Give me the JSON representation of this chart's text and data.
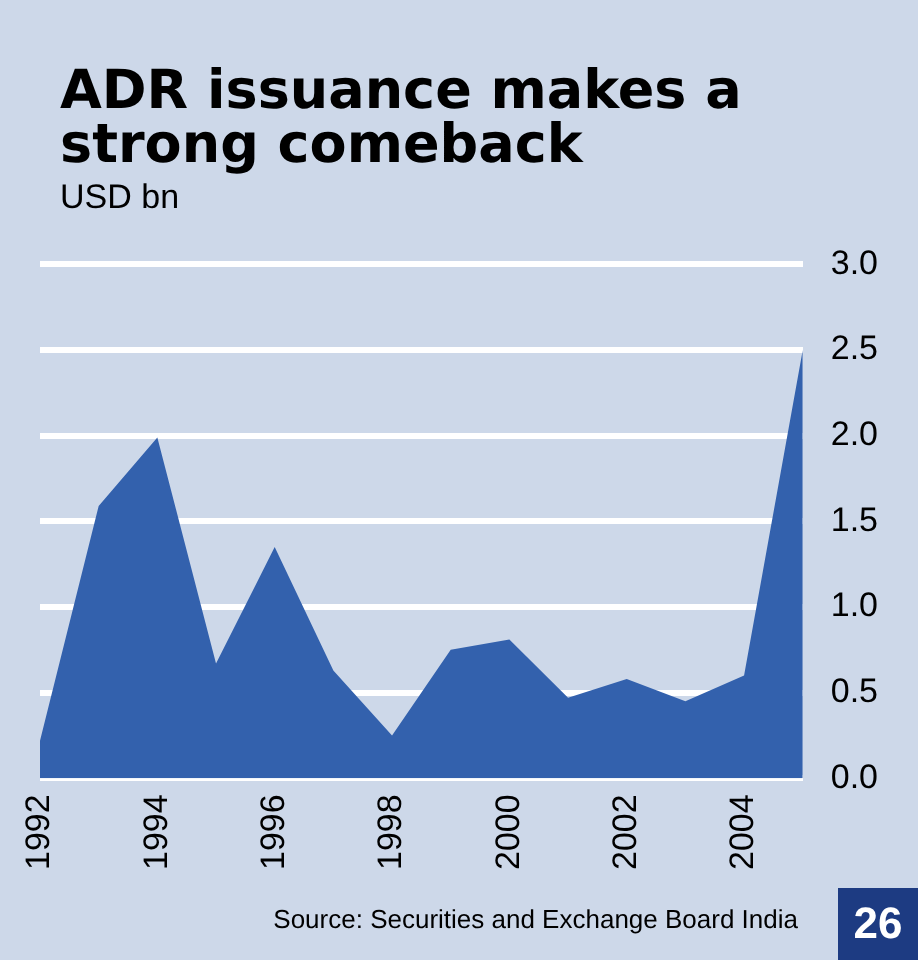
{
  "chart_data": {
    "type": "area",
    "title": "ADR issuance makes a strong comeback",
    "subtitle": "USD bn",
    "x": [
      1992,
      1993,
      1994,
      1995,
      1996,
      1997,
      1998,
      1999,
      2000,
      2001,
      2002,
      2003,
      2004,
      2005
    ],
    "series": [
      {
        "color": "#3361ad",
        "values": [
          0.22,
          1.59,
          1.99,
          0.67,
          1.35,
          0.63,
          0.25,
          0.75,
          0.81,
          0.47,
          0.58,
          0.45,
          0.6,
          2.5
        ]
      }
    ],
    "xlim": [
      1992,
      2005
    ],
    "xticks": [
      1992,
      1994,
      1996,
      1998,
      2000,
      2002,
      2004
    ],
    "ylim": [
      0,
      3
    ],
    "yticks": [
      {
        "value": 0,
        "label": "0.0"
      },
      {
        "value": 0.5,
        "label": "0.5"
      },
      {
        "value": 1,
        "label": "1.0"
      },
      {
        "value": 1.5,
        "label": "1.5"
      },
      {
        "value": 2,
        "label": "2.0"
      },
      {
        "value": 2.5,
        "label": "2.5"
      },
      {
        "value": 3,
        "label": "3.0"
      }
    ],
    "grid": "y",
    "legend": false,
    "marker": "none",
    "annotations": [
      "Source: Securities and Exchange Board India",
      "26"
    ]
  }
}
